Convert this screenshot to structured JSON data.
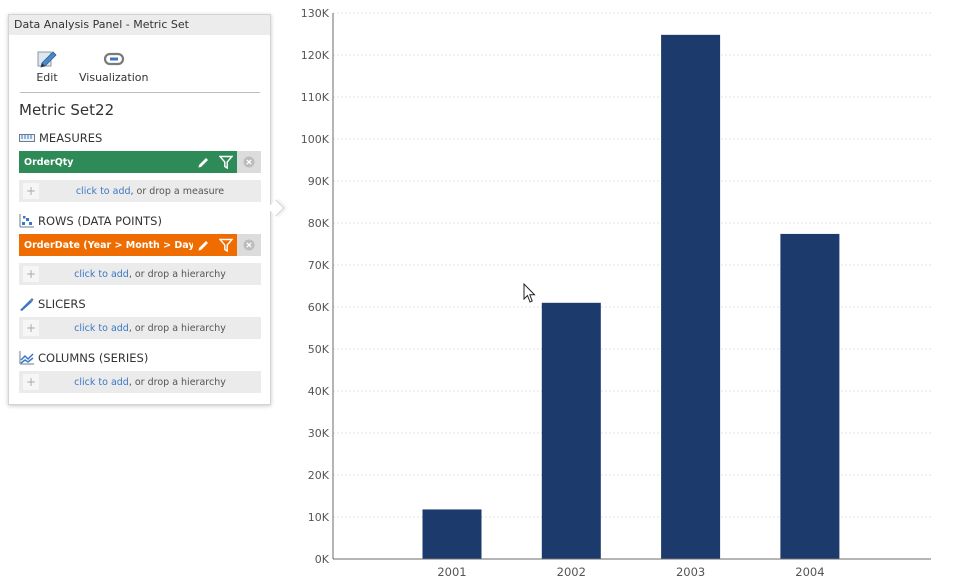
{
  "panel": {
    "title": "Data Analysis Panel - Metric Set",
    "toolbar": {
      "edit_label": "Edit",
      "visualization_label": "Visualization"
    },
    "metric_set_name": "Metric Set22",
    "sections": {
      "measures": {
        "label": "MEASURES",
        "item": "OrderQty",
        "drop_link": "click to add",
        "drop_rest": ", or drop a measure"
      },
      "rows": {
        "label": "ROWS (DATA POINTS)",
        "item": "OrderDate (Year > Month > Day)",
        "drop_link": "click to add",
        "drop_rest": ", or drop a hierarchy"
      },
      "slicers": {
        "label": "SLICERS",
        "drop_link": "click to add",
        "drop_rest": ", or drop a hierarchy"
      },
      "columns": {
        "label": "COLUMNS (SERIES)",
        "drop_link": "click to add",
        "drop_rest": ", or drop a hierarchy"
      }
    },
    "colors": {
      "measure_pill": "#2e8b57",
      "row_pill": "#ef6c00",
      "link": "#3b78c3"
    }
  },
  "chart_data": {
    "type": "bar",
    "categories": [
      "2001",
      "2002",
      "2003",
      "2004"
    ],
    "values": [
      11800,
      61000,
      124800,
      77400
    ],
    "ylim": [
      0,
      130000
    ],
    "yticks": [
      "0K",
      "10K",
      "20K",
      "30K",
      "40K",
      "50K",
      "60K",
      "70K",
      "80K",
      "90K",
      "100K",
      "110K",
      "120K",
      "130K"
    ],
    "grid": true,
    "bar_color": "#1c3a6b",
    "title": "",
    "xlabel": "",
    "ylabel": ""
  }
}
